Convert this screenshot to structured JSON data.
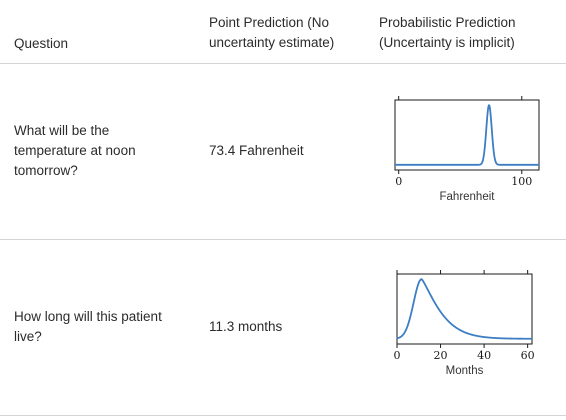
{
  "header": {
    "question": "Question",
    "point_line1": "Point Prediction (No",
    "point_line2": "uncertainty estimate)",
    "prob_line1": "Probabilistic Prediction",
    "prob_line2": "(Uncertainty is implicit)"
  },
  "rows": [
    {
      "question_lines": [
        "What will be the",
        "temperature at noon",
        "tomorrow?"
      ],
      "point": "73.4 Fahrenheit"
    },
    {
      "question_lines": [
        "How long will this patient",
        "live?"
      ],
      "point": "11.3 months"
    }
  ],
  "chart_data": [
    {
      "type": "line",
      "title": "",
      "xlabel": "Fahrenheit",
      "ylabel": "",
      "xlim": [
        -3,
        114
      ],
      "ylim": [
        0,
        1.08
      ],
      "xticks": [
        0,
        100
      ],
      "xtick_labels": [
        "0",
        "100"
      ],
      "series": [
        {
          "name": "density",
          "distribution": "normal",
          "mean": 73.4,
          "sd": 2.2,
          "baseline": 0.08,
          "color": "#3d7ec3"
        }
      ]
    },
    {
      "type": "line",
      "title": "",
      "xlabel": "Months",
      "ylabel": "",
      "xlim": [
        0,
        62
      ],
      "ylim": [
        0,
        1.08
      ],
      "xticks": [
        0,
        20,
        40,
        60
      ],
      "xtick_labels": [
        "0",
        "20",
        "40",
        "60"
      ],
      "series": [
        {
          "name": "density",
          "distribution": "right-skewed",
          "mode": 11.3,
          "baseline": 0.08,
          "color": "#3d7ec3"
        }
      ]
    }
  ]
}
